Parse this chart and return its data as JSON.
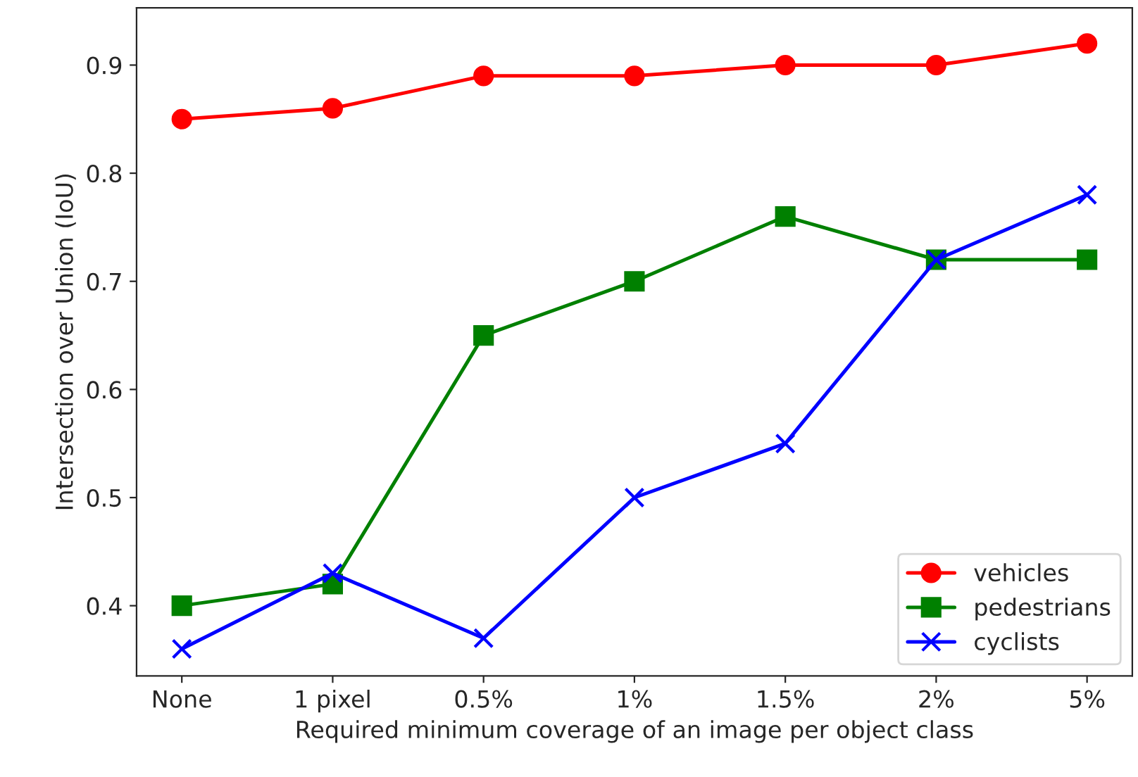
{
  "chart_data": {
    "type": "line",
    "xlabel": "Required minimum coverage of an image per object class",
    "ylabel": "Intersection over Union (IoU)",
    "categories": [
      "None",
      "1 pixel",
      "0.5%",
      "1%",
      "1.5%",
      "2%",
      "5%"
    ],
    "series": [
      {
        "name": "vehicles",
        "color": "#ff0000",
        "marker": "circle",
        "values": [
          0.85,
          0.86,
          0.89,
          0.89,
          0.9,
          0.9,
          0.92
        ]
      },
      {
        "name": "pedestrians",
        "color": "#008000",
        "marker": "square",
        "values": [
          0.4,
          0.42,
          0.65,
          0.7,
          0.76,
          0.72,
          0.72
        ]
      },
      {
        "name": "cyclists",
        "color": "#0000ff",
        "marker": "cross",
        "values": [
          0.36,
          0.43,
          0.37,
          0.5,
          0.55,
          0.72,
          0.78
        ]
      }
    ],
    "ylim": [
      0.335,
      0.953
    ],
    "yticks": [
      0.4,
      0.5,
      0.6,
      0.7,
      0.8,
      0.9
    ],
    "grid": false,
    "legend": "bottom right"
  }
}
